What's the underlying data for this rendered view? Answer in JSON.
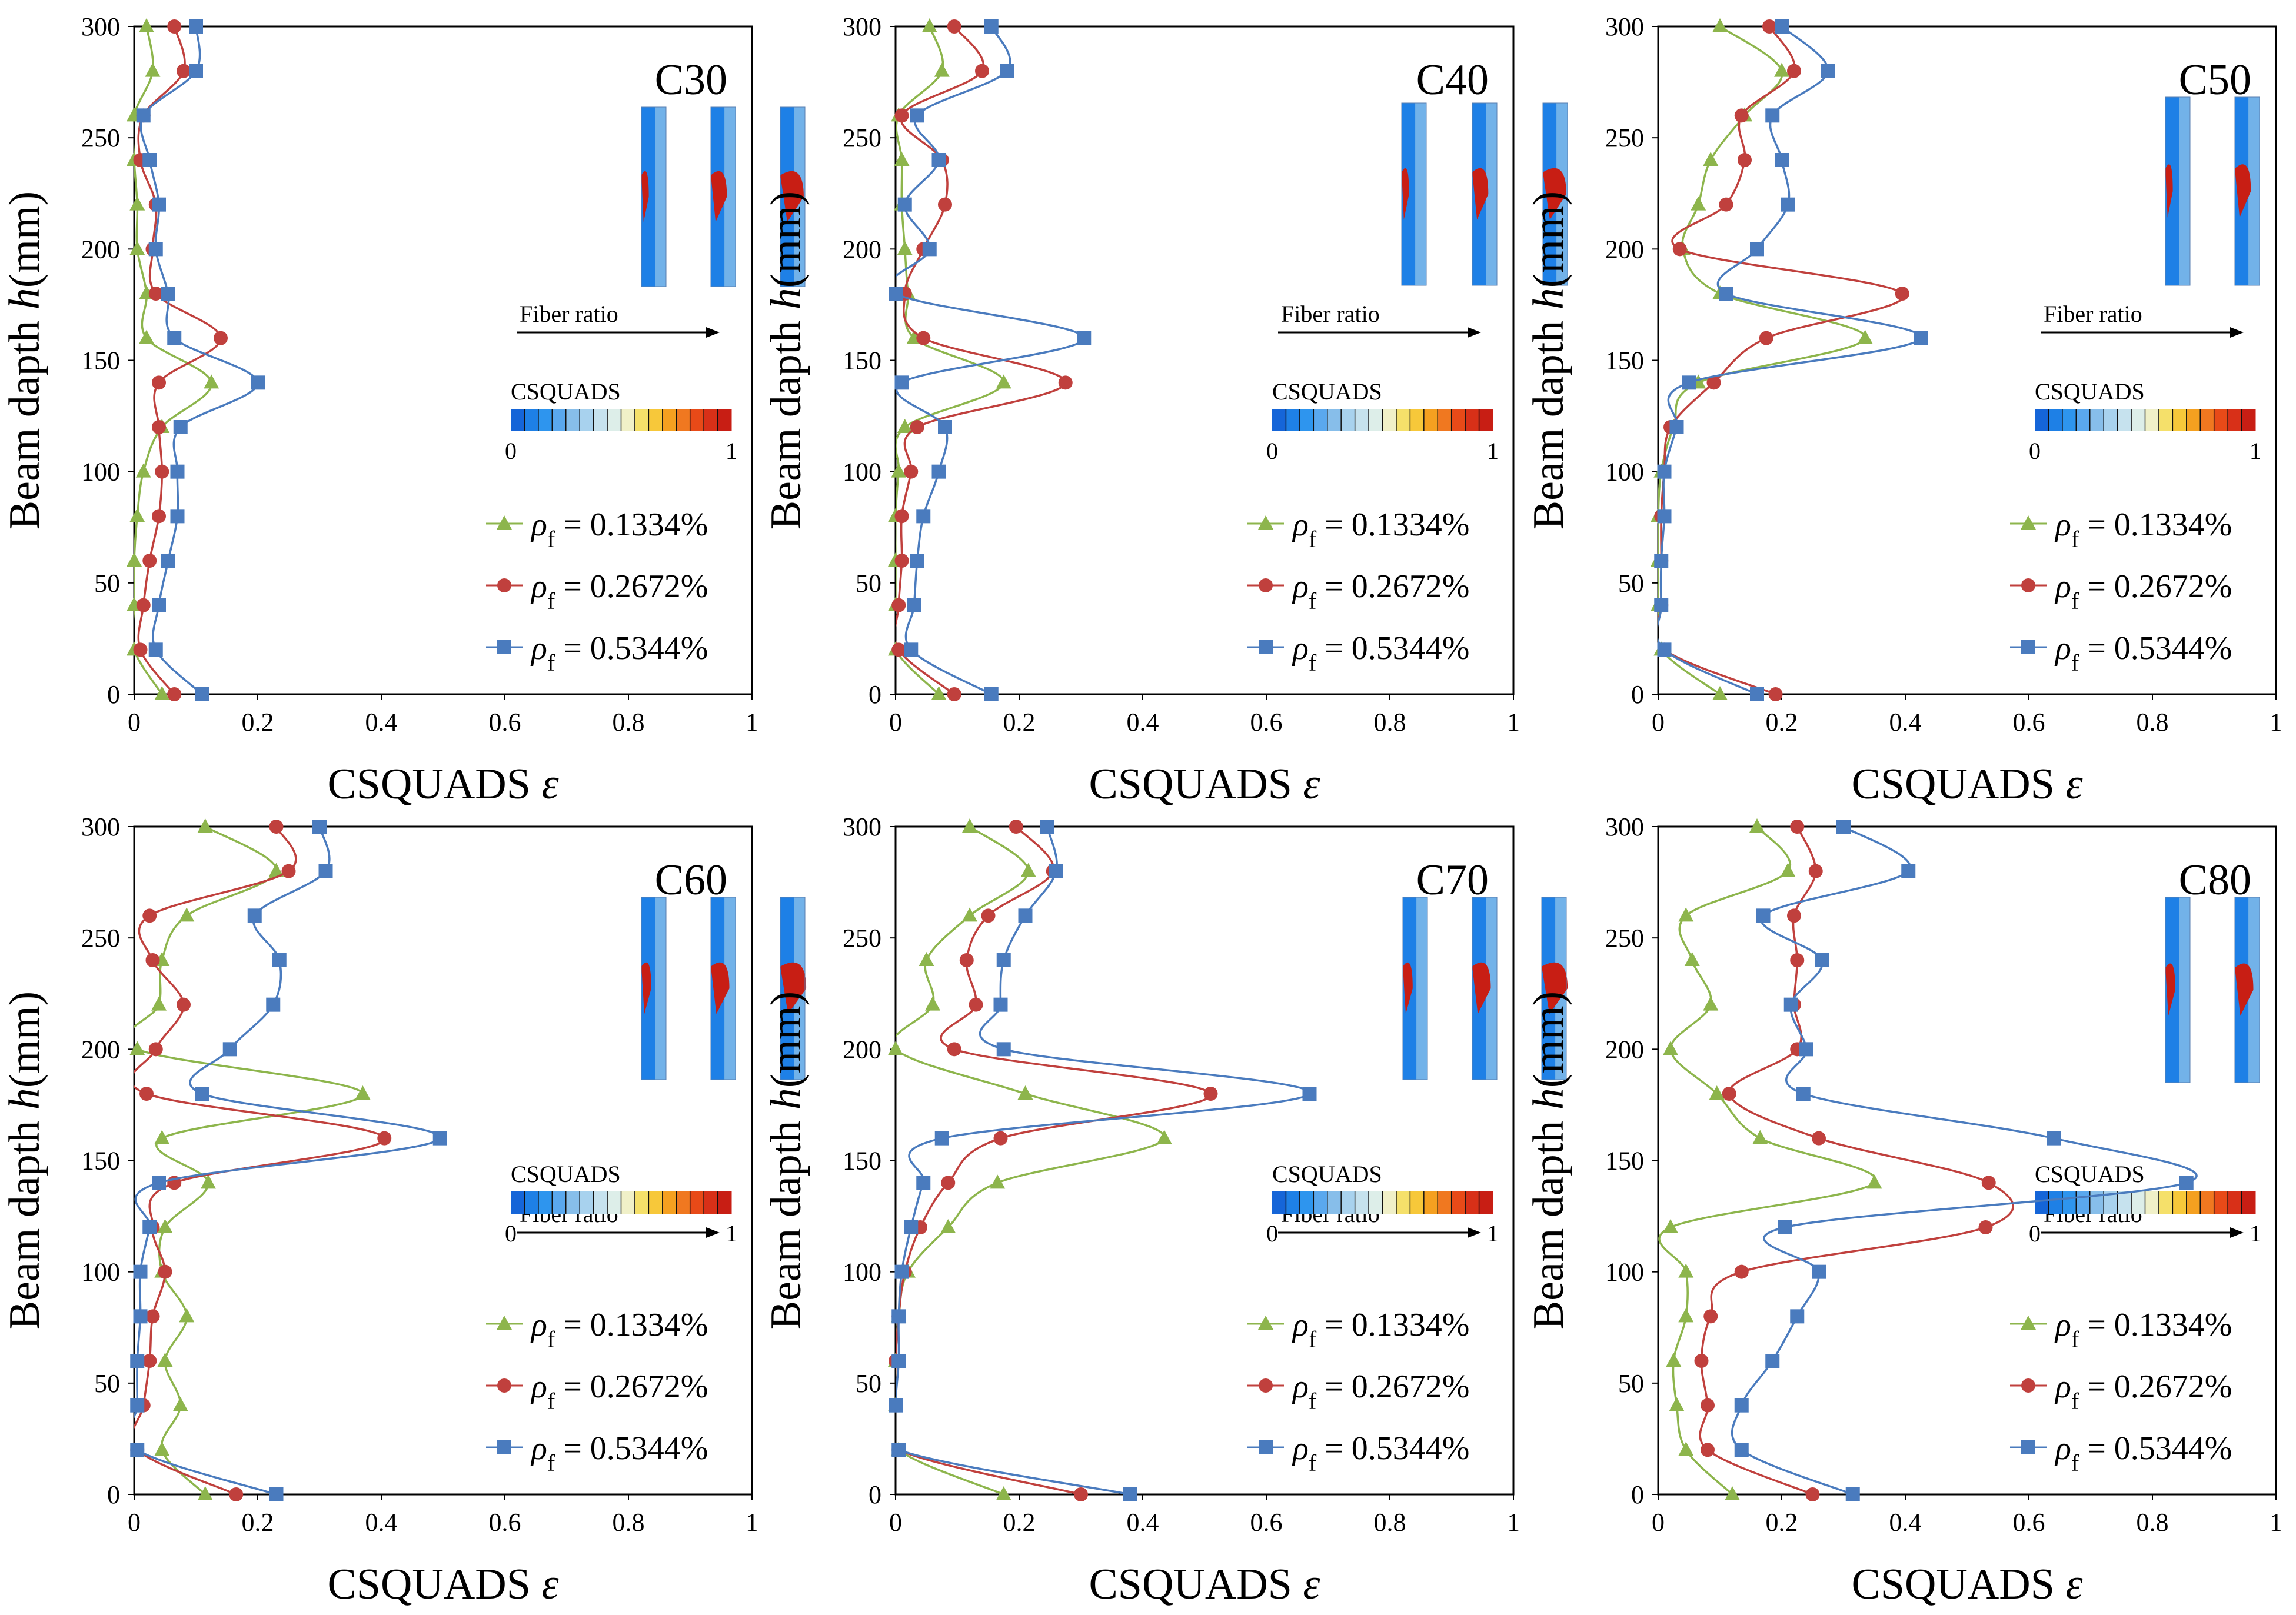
{
  "figure": {
    "colorbar_label": "CSQUADS",
    "colorbar_min": "0",
    "colorbar_max": "1",
    "fiber_ratio_label": "Fiber ratio",
    "legend_symbol": "ρ",
    "legend_subscript": "f",
    "legend_prefix": "= ",
    "series_colors": [
      "#8DB54C",
      "#C0403D",
      "#4A7BBE"
    ],
    "colormap": [
      "#1565D8",
      "#1E80E6",
      "#2E95EE",
      "#5AA8EE",
      "#87BEEA",
      "#A8D2EE",
      "#C6E2EE",
      "#DDEEE9",
      "#F0F0C8",
      "#F5E06A",
      "#F7C83A",
      "#F5A020",
      "#F07820",
      "#E84A18",
      "#D83018",
      "#C81E14"
    ],
    "series_labels": [
      "0.1334%",
      "0.2672%",
      "0.5344%"
    ]
  },
  "chart_data": [
    {
      "type": "line",
      "title": "C30",
      "xlabel": "CSQUADS ε",
      "ylabel": "Beam dapth h(mm)",
      "xlim": [
        0,
        1
      ],
      "ylim": [
        0,
        300
      ],
      "xticks": [
        "0",
        "0.2",
        "0.4",
        "0.6",
        "0.8",
        "1"
      ],
      "yticks": [
        "0",
        "50",
        "100",
        "150",
        "200",
        "250",
        "300"
      ],
      "y": [
        0,
        20,
        40,
        60,
        80,
        100,
        120,
        140,
        160,
        180,
        200,
        220,
        240,
        260,
        280,
        300
      ],
      "series": [
        {
          "name": "ρf = 0.1334%",
          "values": [
            0.045,
            0.0,
            0.0,
            0.0,
            0.005,
            0.015,
            0.045,
            0.125,
            0.02,
            0.02,
            0.005,
            0.005,
            0.0,
            0.0,
            0.03,
            0.02
          ]
        },
        {
          "name": "ρf = 0.2672%",
          "values": [
            0.065,
            0.01,
            0.015,
            0.025,
            0.04,
            0.045,
            0.04,
            0.04,
            0.14,
            0.035,
            0.03,
            0.035,
            0.01,
            0.015,
            0.08,
            0.065
          ]
        },
        {
          "name": "ρf = 0.5344%",
          "values": [
            0.11,
            0.035,
            0.04,
            0.055,
            0.07,
            0.07,
            0.075,
            0.2,
            0.065,
            0.055,
            0.035,
            0.04,
            0.025,
            0.015,
            0.1,
            0.1
          ]
        }
      ]
    },
    {
      "type": "line",
      "title": "C40",
      "xlabel": "CSQUADS ε",
      "ylabel": "Beam dapth h(mm)",
      "xlim": [
        0,
        1
      ],
      "ylim": [
        0,
        300
      ],
      "xticks": [
        "0",
        "0.2",
        "0.4",
        "0.6",
        "0.8",
        "1"
      ],
      "yticks": [
        "0",
        "50",
        "100",
        "150",
        "200",
        "250",
        "300"
      ],
      "y": [
        0,
        20,
        40,
        60,
        80,
        100,
        120,
        140,
        160,
        180,
        200,
        220,
        240,
        260,
        280,
        300
      ],
      "series": [
        {
          "name": "ρf = 0.1334%",
          "values": [
            0.07,
            0.0,
            0.0,
            0.0,
            0.0,
            0.005,
            0.015,
            0.175,
            0.03,
            0.02,
            0.015,
            0.01,
            0.01,
            0.005,
            0.075,
            0.055
          ]
        },
        {
          "name": "ρf = 0.2672%",
          "values": [
            0.095,
            0.005,
            0.005,
            0.01,
            0.01,
            0.025,
            0.035,
            0.275,
            0.045,
            0.015,
            0.045,
            0.08,
            0.075,
            0.01,
            0.14,
            0.095
          ]
        },
        {
          "name": "ρf = 0.5344%",
          "values": [
            0.155,
            0.025,
            0.03,
            0.035,
            0.045,
            0.07,
            0.08,
            0.01,
            0.305,
            0.0,
            0.055,
            0.015,
            0.07,
            0.035,
            0.18,
            0.155
          ]
        }
      ]
    },
    {
      "type": "line",
      "title": "C50",
      "xlabel": "CSQUADS ε",
      "ylabel": "Beam dapth h(mm)",
      "xlim": [
        0,
        1
      ],
      "ylim": [
        0,
        300
      ],
      "xticks": [
        "0",
        "0.2",
        "0.4",
        "0.6",
        "0.8",
        "1"
      ],
      "yticks": [
        "0",
        "50",
        "100",
        "150",
        "200",
        "250",
        "300"
      ],
      "y": [
        0,
        20,
        40,
        60,
        80,
        100,
        120,
        140,
        160,
        180,
        200,
        220,
        240,
        260,
        280,
        300
      ],
      "series": [
        {
          "name": "ρf = 0.1334%",
          "values": [
            0.1,
            0.005,
            0.0,
            0.0,
            0.0,
            0.005,
            0.025,
            0.065,
            0.335,
            0.1,
            0.04,
            0.065,
            0.085,
            0.14,
            0.2,
            0.1
          ]
        },
        {
          "name": "ρf = 0.2672%",
          "values": [
            0.19,
            0.01,
            0.005,
            0.005,
            0.005,
            0.01,
            0.02,
            0.09,
            0.175,
            0.395,
            0.035,
            0.11,
            0.14,
            0.135,
            0.22,
            0.18
          ]
        },
        {
          "name": "ρf = 0.5344%",
          "values": [
            0.16,
            0.01,
            0.005,
            0.005,
            0.01,
            0.01,
            0.03,
            0.05,
            0.425,
            0.11,
            0.16,
            0.21,
            0.2,
            0.185,
            0.275,
            0.2
          ]
        }
      ]
    },
    {
      "type": "line",
      "title": "C60",
      "xlabel": "CSQUADS ε",
      "ylabel": "Beam dapth h(mm)",
      "xlim": [
        0,
        1
      ],
      "ylim": [
        0,
        300
      ],
      "xticks": [
        "0",
        "0.2",
        "0.4",
        "0.6",
        "0.8",
        "1"
      ],
      "yticks": [
        "0",
        "50",
        "100",
        "150",
        "200",
        "250",
        "300"
      ],
      "y": [
        0,
        20,
        40,
        60,
        80,
        100,
        120,
        140,
        160,
        180,
        200,
        220,
        240,
        260,
        280,
        300
      ],
      "series": [
        {
          "name": "ρf = 0.1334%",
          "values": [
            0.115,
            0.045,
            0.075,
            0.05,
            0.085,
            0.045,
            0.05,
            0.12,
            0.045,
            0.37,
            0.005,
            0.04,
            0.045,
            0.085,
            0.23,
            0.115
          ]
        },
        {
          "name": "ρf = 0.2672%",
          "values": [
            0.165,
            0.005,
            0.015,
            0.025,
            0.03,
            0.05,
            0.03,
            0.065,
            0.405,
            0.02,
            0.035,
            0.08,
            0.03,
            0.025,
            0.25,
            0.23
          ]
        },
        {
          "name": "ρf = 0.5344%",
          "values": [
            0.23,
            0.005,
            0.005,
            0.005,
            0.01,
            0.01,
            0.025,
            0.04,
            0.495,
            0.11,
            0.155,
            0.225,
            0.235,
            0.195,
            0.31,
            0.3
          ]
        }
      ]
    },
    {
      "type": "line",
      "title": "C70",
      "xlabel": "CSQUADS ε",
      "ylabel": "Beam dapth h(mm)",
      "xlim": [
        0,
        1
      ],
      "ylim": [
        0,
        300
      ],
      "xticks": [
        "0",
        "0.2",
        "0.4",
        "0.6",
        "0.8",
        "1"
      ],
      "yticks": [
        "0",
        "50",
        "100",
        "150",
        "200",
        "250",
        "300"
      ],
      "y": [
        0,
        20,
        40,
        60,
        80,
        100,
        120,
        140,
        160,
        180,
        200,
        220,
        240,
        260,
        280,
        300
      ],
      "series": [
        {
          "name": "ρf = 0.1334%",
          "values": [
            0.175,
            0.005,
            0.0,
            0.0,
            0.005,
            0.02,
            0.085,
            0.165,
            0.435,
            0.21,
            0.0,
            0.06,
            0.05,
            0.12,
            0.215,
            0.12
          ]
        },
        {
          "name": "ρf = 0.2672%",
          "values": [
            0.3,
            0.005,
            0.0,
            0.0,
            0.005,
            0.015,
            0.04,
            0.085,
            0.17,
            0.51,
            0.095,
            0.13,
            0.115,
            0.15,
            0.255,
            0.195
          ]
        },
        {
          "name": "ρf = 0.5344%",
          "values": [
            0.38,
            0.005,
            0.0,
            0.005,
            0.005,
            0.01,
            0.025,
            0.045,
            0.075,
            0.67,
            0.175,
            0.17,
            0.175,
            0.21,
            0.26,
            0.245
          ]
        }
      ]
    },
    {
      "type": "line",
      "title": "C80",
      "xlabel": "CSQUADS ε",
      "ylabel": "Beam dapth h(mm)",
      "xlim": [
        0,
        1
      ],
      "ylim": [
        0,
        300
      ],
      "xticks": [
        "0",
        "0.2",
        "0.4",
        "0.6",
        "0.8",
        "1"
      ],
      "yticks": [
        "0",
        "50",
        "100",
        "150",
        "200",
        "250",
        "300"
      ],
      "y": [
        0,
        20,
        40,
        60,
        80,
        100,
        120,
        140,
        160,
        180,
        200,
        220,
        240,
        260,
        280,
        300
      ],
      "series": [
        {
          "name": "ρf = 0.1334%",
          "values": [
            0.12,
            0.045,
            0.03,
            0.025,
            0.045,
            0.045,
            0.02,
            0.35,
            0.165,
            0.095,
            0.02,
            0.085,
            0.055,
            0.045,
            0.21,
            0.16
          ]
        },
        {
          "name": "ρf = 0.2672%",
          "values": [
            0.25,
            0.08,
            0.08,
            0.07,
            0.085,
            0.135,
            0.53,
            0.535,
            0.26,
            0.115,
            0.225,
            0.22,
            0.225,
            0.22,
            0.255,
            0.225
          ]
        },
        {
          "name": "ρf = 0.5344%",
          "values": [
            0.315,
            0.135,
            0.135,
            0.185,
            0.225,
            0.26,
            0.205,
            0.855,
            0.64,
            0.235,
            0.24,
            0.215,
            0.265,
            0.17,
            0.405,
            0.3
          ]
        }
      ]
    }
  ]
}
